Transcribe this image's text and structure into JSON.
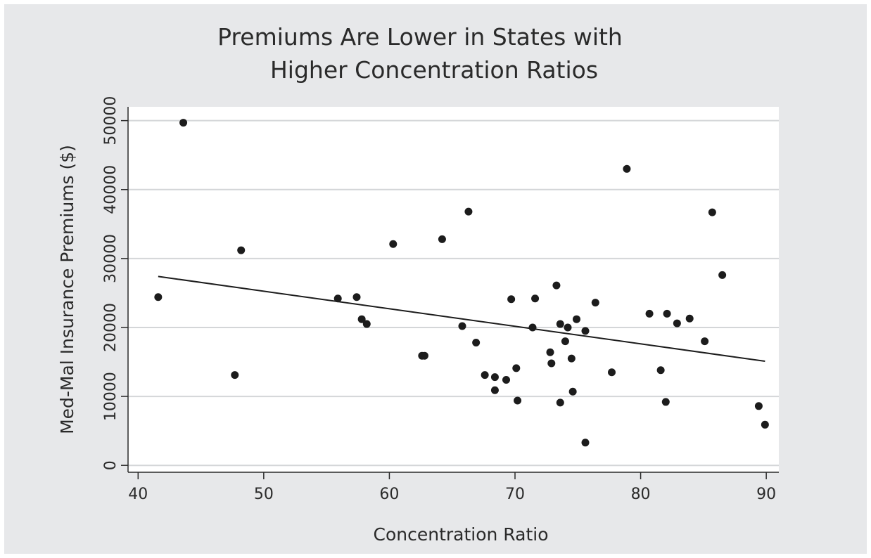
{
  "chart_data": {
    "type": "scatter",
    "title_lines": [
      "Premiums Are Lower in States with",
      "Higher Concentration Ratios"
    ],
    "xlabel": "Concentration Ratio",
    "ylabel": "Med-Mal Insurance Premiums ($)",
    "xlim": [
      39.2,
      91
    ],
    "ylim": [
      -1000,
      52000
    ],
    "xticks": [
      40,
      50,
      60,
      70,
      80,
      90
    ],
    "yticks": [
      0,
      10000,
      20000,
      30000,
      40000,
      50000
    ],
    "grid": "horizontal",
    "legend": "none",
    "series": [
      {
        "points": [
          [
            41.6,
            24400
          ],
          [
            43.6,
            49700
          ],
          [
            47.7,
            13100
          ],
          [
            48.2,
            31200
          ],
          [
            55.9,
            24200
          ],
          [
            57.4,
            24400
          ],
          [
            57.8,
            21200
          ],
          [
            58.2,
            20500
          ],
          [
            60.3,
            32100
          ],
          [
            62.6,
            15900
          ],
          [
            62.8,
            15900
          ],
          [
            64.2,
            32800
          ],
          [
            65.8,
            20200
          ],
          [
            66.3,
            36800
          ],
          [
            66.9,
            17800
          ],
          [
            67.6,
            13100
          ],
          [
            68.4,
            12800
          ],
          [
            68.4,
            10900
          ],
          [
            69.3,
            12400
          ],
          [
            69.7,
            24100
          ],
          [
            70.1,
            14100
          ],
          [
            70.2,
            9400
          ],
          [
            71.4,
            20000
          ],
          [
            71.6,
            24200
          ],
          [
            72.8,
            16400
          ],
          [
            72.9,
            14800
          ],
          [
            73.3,
            26100
          ],
          [
            73.6,
            20500
          ],
          [
            73.6,
            9100
          ],
          [
            74.0,
            18000
          ],
          [
            74.2,
            20000
          ],
          [
            74.5,
            15500
          ],
          [
            74.6,
            10700
          ],
          [
            74.9,
            21200
          ],
          [
            75.6,
            3300
          ],
          [
            75.6,
            19500
          ],
          [
            76.4,
            23600
          ],
          [
            77.7,
            13500
          ],
          [
            78.9,
            43000
          ],
          [
            80.7,
            22000
          ],
          [
            81.6,
            13800
          ],
          [
            82.0,
            9200
          ],
          [
            82.1,
            22000
          ],
          [
            82.9,
            20600
          ],
          [
            83.9,
            21300
          ],
          [
            85.1,
            18000
          ],
          [
            85.7,
            36700
          ],
          [
            86.5,
            27600
          ],
          [
            89.4,
            8600
          ],
          [
            89.9,
            5900
          ]
        ],
        "color": "#1c1c1c"
      }
    ],
    "fit_line": {
      "x": [
        41.6,
        89.9
      ],
      "y": [
        27400,
        15100
      ],
      "color": "#1c1c1c"
    }
  }
}
